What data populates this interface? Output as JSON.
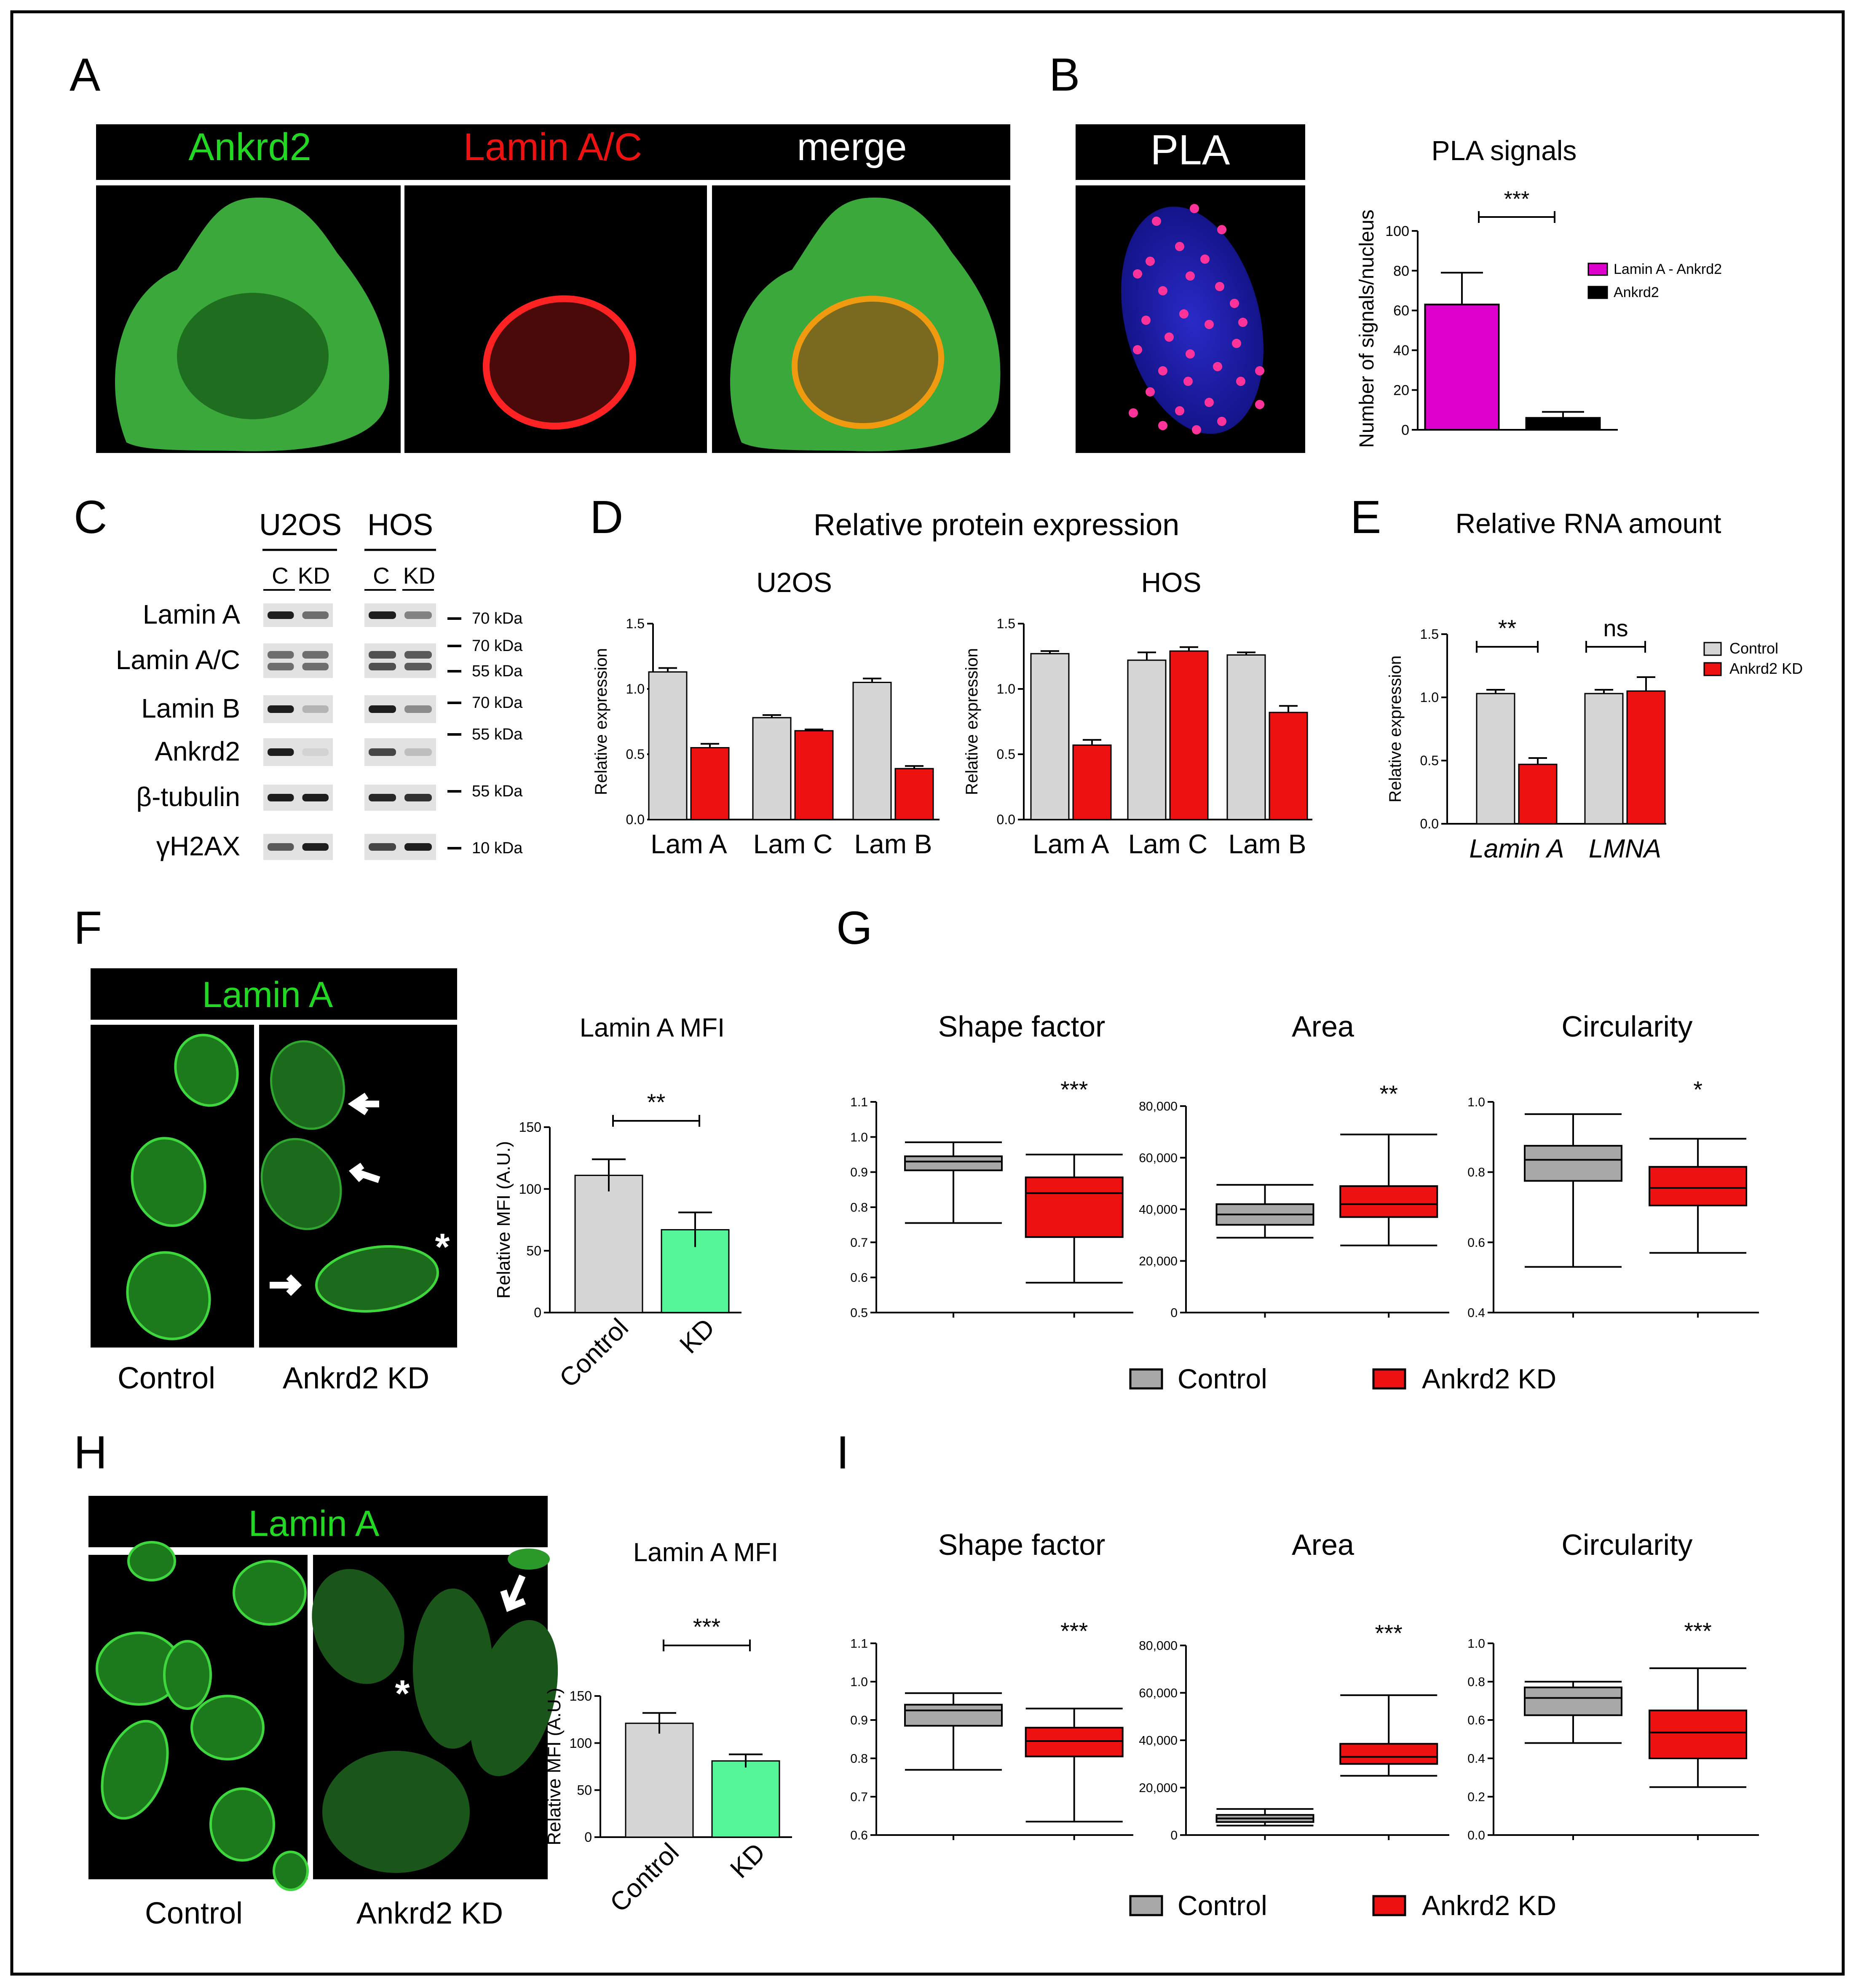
{
  "panels": {
    "A": "A",
    "B": "B",
    "C": "C",
    "D": "D",
    "E": "E",
    "F": "F",
    "G": "G",
    "H": "H",
    "I": "I"
  },
  "colors": {
    "green": "#22d822",
    "red": "#ee1111",
    "magenta": "#dd00cc",
    "gray": "#d6d6d6",
    "darkgray": "#a8a8a8",
    "mint": "#55f59a",
    "black": "#000000"
  },
  "panel_a": {
    "headers": [
      "Ankrd2",
      "Lamin A/C",
      "merge"
    ]
  },
  "panel_b": {
    "header": "PLA",
    "chart_title": "PLA  signals",
    "ylabel": "Number of signals/nucleus",
    "sig": "***"
  },
  "panel_c": {
    "groups": [
      "U2OS",
      "HOS"
    ],
    "lanes": [
      "C",
      "KD",
      "C",
      "KD"
    ],
    "rows": [
      "Lamin A",
      "Lamin A/C",
      "Lamin B",
      "Ankrd2",
      "β-tubulin",
      "γH2AX"
    ],
    "markers": [
      "70 kDa",
      "70 kDa",
      "55 kDa",
      "70 kDa",
      "55 kDa",
      "55 kDa",
      "10 kDa"
    ]
  },
  "panel_d": {
    "title": "Relative protein expression",
    "subtitles": [
      "U2OS",
      "HOS"
    ],
    "ylabel": "Relative expression"
  },
  "panel_e": {
    "title": "Relative RNA amount",
    "ylabel": "Relative expression",
    "sig": [
      "**",
      "ns"
    ]
  },
  "panel_f": {
    "header": "Lamin A",
    "labels": [
      "Control",
      "Ankrd2 KD"
    ],
    "chart_title": "Lamin A  MFI",
    "ylabel": "Relative MFI (A.U.)",
    "sig": "**",
    "asterisk": "*"
  },
  "panel_g": {
    "titles": [
      "Shape factor",
      "Area",
      "Circularity"
    ],
    "sig": [
      "***",
      "**",
      "*"
    ],
    "legend": [
      "Control",
      "Ankrd2 KD"
    ]
  },
  "panel_h": {
    "header": "Lamin A",
    "labels": [
      "Control",
      "Ankrd2 KD"
    ],
    "chart_title": "Lamin A   MFI",
    "ylabel": "Relative MFI (A.U.)",
    "sig": "***",
    "asterisk": "*"
  },
  "panel_i": {
    "titles": [
      "Shape factor",
      "Area",
      "Circularity"
    ],
    "sig": [
      "***",
      "***",
      "***"
    ],
    "legend": [
      "Control",
      "Ankrd2 KD"
    ]
  },
  "chart_data": [
    {
      "type": "bar",
      "panel": "B",
      "categories": [
        "Lamin A - Ankrd2",
        "Ankrd2"
      ],
      "values": [
        63,
        6
      ],
      "errors": [
        16,
        3
      ],
      "ylabel": "Number of signals/nucleus",
      "ylim": [
        0,
        100
      ],
      "yticks": [
        0,
        20,
        40,
        60,
        80,
        100
      ],
      "legend": [
        "Lamin A - Ankrd2",
        "Ankrd2"
      ]
    },
    {
      "type": "bar",
      "panel": "D-U2OS",
      "categories": [
        "Lam A",
        "Lam C",
        "Lam B"
      ],
      "series": [
        {
          "values": [
            1.13,
            0.78,
            1.05
          ],
          "errors": [
            0.03,
            0.02,
            0.03
          ]
        },
        {
          "values": [
            0.55,
            0.68,
            0.39
          ],
          "errors": [
            0.03,
            0.01,
            0.02
          ]
        }
      ],
      "ylabel": "Relative expression",
      "ylim": [
        0,
        1.5
      ],
      "yticks": [
        "0.0",
        "0.5",
        "1.0",
        "1.5"
      ]
    },
    {
      "type": "bar",
      "panel": "D-HOS",
      "categories": [
        "Lam A",
        "Lam C",
        "Lam B"
      ],
      "series": [
        {
          "values": [
            1.27,
            1.22,
            1.26
          ],
          "errors": [
            0.02,
            0.06,
            0.02
          ]
        },
        {
          "values": [
            0.57,
            1.29,
            0.82
          ],
          "errors": [
            0.04,
            0.03,
            0.05
          ]
        }
      ],
      "ylabel": "Relative expression",
      "ylim": [
        0,
        1.5
      ],
      "yticks": [
        "0.0",
        "0.5",
        "1.0",
        "1.5"
      ]
    },
    {
      "type": "bar",
      "panel": "E",
      "categories": [
        "Lamin A",
        "LMNA"
      ],
      "series": [
        {
          "name": "Control",
          "values": [
            1.03,
            1.03
          ],
          "errors": [
            0.03,
            0.03
          ]
        },
        {
          "name": "Ankrd2 KD",
          "values": [
            0.47,
            1.05
          ],
          "errors": [
            0.05,
            0.11
          ]
        }
      ],
      "ylabel": "Relative expression",
      "ylim": [
        0,
        1.5
      ],
      "yticks": [
        "0.0",
        "0.5",
        "1.0",
        "1.5"
      ]
    },
    {
      "type": "bar",
      "panel": "F",
      "categories": [
        "Control",
        "KD"
      ],
      "values": [
        111,
        67
      ],
      "errors": [
        13,
        14
      ],
      "ylabel": "Relative MFI (A.U.)",
      "ylim": [
        0,
        150
      ],
      "yticks": [
        "0",
        "50",
        "100",
        "150"
      ]
    },
    {
      "type": "box",
      "panel": "G-Shape factor",
      "ylim": [
        0.5,
        1.1
      ],
      "yticks": [
        "0.5",
        "0.6",
        "0.7",
        "0.8",
        "0.9",
        "1.0",
        "1.1"
      ],
      "boxes": [
        {
          "name": "Control",
          "min": 0.755,
          "q1": 0.905,
          "median": 0.93,
          "q3": 0.945,
          "max": 0.985
        },
        {
          "name": "Ankrd2 KD",
          "min": 0.585,
          "q1": 0.715,
          "median": 0.84,
          "q3": 0.885,
          "max": 0.95
        }
      ]
    },
    {
      "type": "box",
      "panel": "G-Area",
      "ylim": [
        0,
        80000
      ],
      "yticks": [
        "0",
        "20,000",
        "40,000",
        "60,000",
        "80,000"
      ],
      "boxes": [
        {
          "name": "Control",
          "min": 29000,
          "q1": 34000,
          "median": 38000,
          "q3": 42000,
          "max": 49500
        },
        {
          "name": "Ankrd2 KD",
          "min": 26000,
          "q1": 37000,
          "median": 42000,
          "q3": 49000,
          "max": 69000
        }
      ]
    },
    {
      "type": "box",
      "panel": "G-Circularity",
      "ylim": [
        0.4,
        1.0
      ],
      "yticks": [
        "0.4",
        "0.6",
        "0.8",
        "1.0"
      ],
      "boxes": [
        {
          "name": "Control",
          "min": 0.53,
          "q1": 0.775,
          "median": 0.835,
          "q3": 0.875,
          "max": 0.965
        },
        {
          "name": "Ankrd2 KD",
          "min": 0.57,
          "q1": 0.705,
          "median": 0.755,
          "q3": 0.815,
          "max": 0.895
        }
      ]
    },
    {
      "type": "bar",
      "panel": "H",
      "categories": [
        "Control",
        "KD"
      ],
      "values": [
        121,
        81
      ],
      "errors": [
        11,
        7
      ],
      "ylabel": "Relative MFI (A.U.)",
      "ylim": [
        0,
        150
      ],
      "yticks": [
        "0",
        "50",
        "100",
        "150"
      ]
    },
    {
      "type": "box",
      "panel": "I-Shape factor",
      "ylim": [
        0.6,
        1.1
      ],
      "yticks": [
        "0.6",
        "0.7",
        "0.8",
        "0.9",
        "1.0",
        "1.1"
      ],
      "boxes": [
        {
          "name": "Control",
          "min": 0.77,
          "q1": 0.885,
          "median": 0.925,
          "q3": 0.94,
          "max": 0.97
        },
        {
          "name": "Ankrd2 KD",
          "min": 0.635,
          "q1": 0.805,
          "median": 0.845,
          "q3": 0.88,
          "max": 0.93
        }
      ]
    },
    {
      "type": "box",
      "panel": "I-Area",
      "ylim": [
        0,
        80000
      ],
      "yticks": [
        "0",
        "20,000",
        "40,000",
        "60,000",
        "80,000"
      ],
      "boxes": [
        {
          "name": "Control",
          "min": 4000,
          "q1": 5500,
          "median": 7000,
          "q3": 8500,
          "max": 11000
        },
        {
          "name": "Ankrd2 KD",
          "min": 25000,
          "q1": 30000,
          "median": 33000,
          "q3": 38500,
          "max": 59000
        }
      ]
    },
    {
      "type": "box",
      "panel": "I-Circularity",
      "ylim": [
        0,
        1.0
      ],
      "yticks": [
        "0.0",
        "0.2",
        "0.4",
        "0.6",
        "0.8",
        "1.0"
      ],
      "boxes": [
        {
          "name": "Control",
          "min": 0.48,
          "q1": 0.625,
          "median": 0.715,
          "q3": 0.77,
          "max": 0.8
        },
        {
          "name": "Ankrd2 KD",
          "min": 0.25,
          "q1": 0.4,
          "median": 0.535,
          "q3": 0.65,
          "max": 0.87
        }
      ]
    }
  ]
}
